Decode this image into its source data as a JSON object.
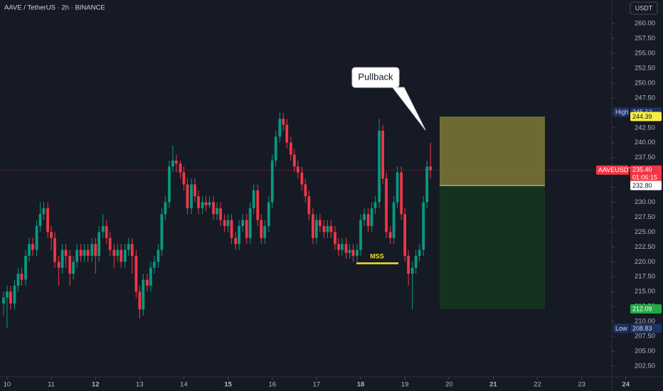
{
  "chart_data": {
    "type": "candlestick",
    "title": "AAVE / TetherUS · 2h · BINANCE",
    "currency": "USDT",
    "up_color": "#089981",
    "down_color": "#f23645",
    "x": [
      9.92,
      10,
      10.08,
      10.17,
      10.25,
      10.33,
      10.42,
      10.5,
      10.58,
      10.67,
      10.75,
      10.83,
      10.92,
      11,
      11.08,
      11.17,
      11.25,
      11.33,
      11.42,
      11.5,
      11.58,
      11.67,
      11.75,
      11.83,
      11.92,
      12,
      12.08,
      12.17,
      12.25,
      12.33,
      12.42,
      12.5,
      12.58,
      12.67,
      12.75,
      12.83,
      12.92,
      13,
      13.08,
      13.17,
      13.25,
      13.33,
      13.42,
      13.5,
      13.58,
      13.67,
      13.75,
      13.83,
      13.92,
      14,
      14.08,
      14.17,
      14.25,
      14.33,
      14.42,
      14.5,
      14.58,
      14.67,
      14.75,
      14.83,
      14.92,
      15,
      15.08,
      15.17,
      15.25,
      15.33,
      15.42,
      15.5,
      15.58,
      15.67,
      15.75,
      15.83,
      15.92,
      16,
      16.08,
      16.17,
      16.25,
      16.33,
      16.42,
      16.5,
      16.58,
      16.67,
      16.75,
      16.83,
      16.92,
      17,
      17.08,
      17.17,
      17.25,
      17.33,
      17.42,
      17.5,
      17.58,
      17.67,
      17.75,
      17.83,
      17.92,
      18,
      18.08,
      18.17,
      18.25,
      18.33,
      18.42,
      18.5,
      18.58,
      18.67,
      18.75,
      18.83,
      18.92,
      19,
      19.08,
      19.17,
      19.25,
      19.33,
      19.42,
      19.5,
      19.58
    ],
    "open": [
      213,
      214,
      215,
      213,
      216,
      218,
      217,
      221,
      223,
      222,
      226,
      228,
      229,
      225,
      224,
      220,
      219,
      222,
      221,
      218,
      220,
      222,
      221,
      222,
      221,
      223,
      221,
      225,
      226,
      224,
      222,
      221,
      222,
      220,
      222,
      223,
      221,
      215,
      212,
      217,
      216,
      219,
      220,
      222,
      228,
      230,
      236,
      237,
      236.5,
      235,
      233,
      229,
      233,
      231,
      229,
      230,
      229.5,
      230,
      228,
      229,
      227,
      226,
      227,
      224,
      223,
      226,
      227,
      224,
      229,
      232,
      227,
      224,
      226,
      230,
      237,
      241,
      244,
      243,
      240,
      238,
      236,
      235,
      233,
      231,
      228,
      224,
      227,
      226,
      225,
      226,
      225,
      223,
      222,
      223,
      221.5,
      222,
      221,
      222,
      227,
      228,
      226,
      229,
      230,
      242,
      234,
      225,
      224,
      230,
      235,
      228,
      221,
      218,
      219,
      221,
      222,
      230,
      236
    ],
    "high": [
      215,
      216,
      216,
      217,
      219,
      219,
      222,
      224,
      224,
      227,
      230,
      230,
      230,
      226,
      225,
      221,
      223,
      223,
      222,
      221,
      223,
      223,
      223,
      223,
      224,
      224,
      226,
      228,
      227,
      225,
      223,
      223,
      223,
      223,
      224,
      224,
      222,
      216,
      218,
      218,
      220,
      221,
      223,
      229,
      231,
      237,
      239.5,
      238,
      237,
      236,
      234,
      234,
      234,
      232,
      231,
      231,
      231,
      231,
      230,
      230,
      228,
      228,
      228,
      225,
      227,
      228,
      228,
      230,
      233,
      233,
      228,
      227,
      231,
      238,
      242,
      245.12,
      245,
      244,
      241,
      239,
      237,
      236,
      234,
      232,
      229,
      228,
      228,
      227,
      227,
      227,
      226,
      224,
      224,
      224,
      223,
      223,
      223,
      228,
      229,
      229,
      230,
      231,
      244,
      243,
      235,
      226,
      231,
      236,
      236,
      229,
      222,
      220,
      222,
      223,
      231,
      237,
      240
    ],
    "low": [
      211,
      208.83,
      212,
      212,
      215,
      216,
      216,
      220,
      221,
      221,
      225,
      227,
      224,
      222,
      219,
      216,
      218,
      219,
      216,
      217,
      219,
      220,
      220,
      220,
      220,
      218,
      220,
      224,
      223,
      221,
      219,
      220,
      219,
      219,
      221,
      218,
      214,
      210.5,
      211,
      215,
      215,
      218,
      219,
      221,
      227,
      229,
      235,
      235,
      234,
      232,
      228,
      228,
      230,
      228,
      228,
      228.5,
      229,
      227,
      227,
      226,
      225,
      225,
      223,
      222,
      222,
      225,
      223,
      223,
      228,
      226,
      223,
      223,
      225,
      229,
      236,
      240,
      242,
      239,
      237,
      235,
      234,
      232,
      230,
      227,
      223,
      223,
      225,
      224,
      224,
      224,
      222,
      221,
      221,
      220.5,
      220.5,
      220,
      220,
      221,
      226,
      225,
      225,
      228,
      229,
      233,
      224,
      223,
      223,
      229,
      227,
      220,
      216,
      212,
      218,
      220,
      221,
      229,
      234
    ],
    "close": [
      214,
      215,
      213,
      216,
      218,
      217,
      221,
      223,
      222,
      226,
      228,
      229,
      225,
      224,
      220,
      219,
      222,
      221,
      218,
      220,
      222,
      221,
      222,
      221,
      223,
      221,
      225,
      226,
      224,
      222,
      221,
      222,
      220,
      222,
      223,
      221,
      215,
      212,
      217,
      216,
      219,
      220,
      222,
      228,
      230,
      236,
      237,
      236.5,
      235,
      233,
      229,
      233,
      231,
      229,
      230,
      229.5,
      230,
      228,
      229,
      227,
      226,
      227,
      224,
      223,
      226,
      227,
      224,
      229,
      232,
      227,
      224,
      226,
      230,
      237,
      241,
      244,
      243,
      240,
      238,
      236,
      235,
      233,
      231,
      228,
      224,
      227,
      226,
      225,
      226,
      225,
      223,
      222,
      223,
      221.5,
      222,
      221,
      222,
      227,
      228,
      226,
      229,
      230,
      242,
      234,
      225,
      224,
      230,
      235,
      228,
      221,
      218,
      219,
      221,
      222,
      230,
      236,
      235.4
    ],
    "xlim": [
      9.84,
      24.84
    ],
    "xticks": [
      10,
      11,
      12,
      13,
      14,
      15,
      16,
      17,
      18,
      19,
      20,
      21,
      22,
      23,
      24
    ],
    "ylim": [
      200.7,
      263.95
    ],
    "yticks": [
      {
        "value": 202.5,
        "label": "202.50"
      },
      {
        "value": 205,
        "label": "205.00"
      },
      {
        "value": 207.5,
        "label": "207.50"
      },
      {
        "value": 210,
        "label": "210.00"
      },
      {
        "value": 212.5,
        "label": "212.50"
      },
      {
        "value": 215,
        "label": "215.00"
      },
      {
        "value": 217.5,
        "label": "217.50"
      },
      {
        "value": 220,
        "label": "220.00"
      },
      {
        "value": 222.5,
        "label": "222.50"
      },
      {
        "value": 225,
        "label": "225.00"
      },
      {
        "value": 227.5,
        "label": "227.50"
      },
      {
        "value": 230,
        "label": "230.00"
      },
      {
        "value": 232.5,
        "label": "232.50"
      },
      {
        "value": 235,
        "label": "235.00"
      },
      {
        "value": 237.5,
        "label": "237.50"
      },
      {
        "value": 240,
        "label": "240.00"
      },
      {
        "value": 242.5,
        "label": "242.50"
      },
      {
        "value": 245,
        "label": "245.00"
      },
      {
        "value": 247.5,
        "label": "247.50"
      },
      {
        "value": 250,
        "label": "250.00"
      },
      {
        "value": 252.5,
        "label": "252.50"
      },
      {
        "value": 255,
        "label": "255.00"
      },
      {
        "value": 257.5,
        "label": "257.50"
      },
      {
        "value": 260,
        "label": "260.00"
      }
    ],
    "last_price": {
      "symbol": "AAVEUSDT",
      "value": 235.4,
      "label": "235.40",
      "countdown": "01:06:15"
    },
    "high_marker": {
      "label": "High",
      "value": 245.12
    },
    "low_marker": {
      "label": "Low",
      "value": 208.83
    },
    "position": {
      "stop": 244.39,
      "entry": {
        "value": 232.8,
        "label": "232.80"
      },
      "target": 212.09
    },
    "mss": {
      "text": "MSS",
      "value": 219.75
    },
    "annotation": "Pullback"
  }
}
